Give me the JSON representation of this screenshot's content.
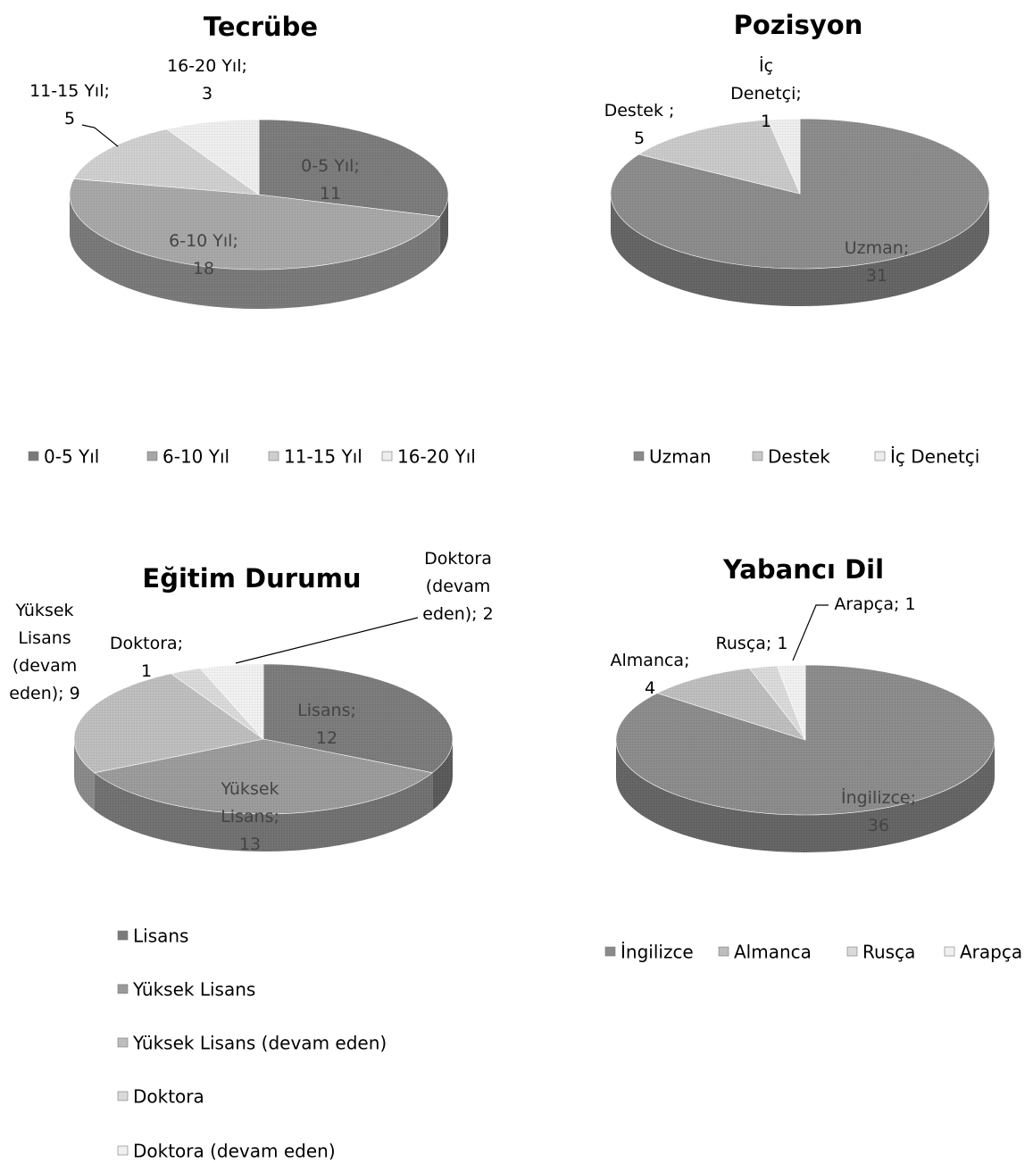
{
  "chart_data": [
    {
      "type": "pie",
      "title": "Tecrübe",
      "categories": [
        "0-5 Yıl",
        "6-10 Yıl",
        "11-15 Yıl",
        "16-20 Yıl"
      ],
      "values": [
        11,
        18,
        5,
        3
      ],
      "colors": [
        "#7a7a7a",
        "#a6a6a6",
        "#cecece",
        "#ededed"
      ],
      "data_labels": [
        {
          "category": "0-5 Yıl",
          "value": "11"
        },
        {
          "category": "6-10 Yıl",
          "value": "18"
        },
        {
          "category": "11-15 Yıl",
          "value": "5"
        },
        {
          "category": "16-20 Yıl",
          "value": "3"
        }
      ],
      "legend": [
        "0-5 Yıl",
        "6-10 Yıl",
        "11-15 Yıl",
        "16-20 Yıl"
      ],
      "legend_position": "bottom"
    },
    {
      "type": "pie",
      "title": "Pozisyon",
      "categories": [
        "Uzman",
        "Destek",
        "İç Denetçi"
      ],
      "values": [
        31,
        5,
        1
      ],
      "colors": [
        "#8a8a8a",
        "#c8c8c8",
        "#ededed"
      ],
      "data_labels": [
        {
          "category": "Uzman",
          "value": "31"
        },
        {
          "category": "Destek",
          "value": "5"
        },
        {
          "category": "İç Denetçi",
          "value": "1"
        }
      ],
      "legend": [
        "Uzman",
        "Destek",
        "İç Denetçi"
      ],
      "legend_position": "bottom"
    },
    {
      "type": "pie",
      "title": "Eğitim Durumu",
      "categories": [
        "Lisans",
        "Yüksek Lisans",
        "Yüksek Lisans (devam eden)",
        "Doktora",
        "Doktora (devam eden)"
      ],
      "values": [
        12,
        13,
        9,
        1,
        2
      ],
      "colors": [
        "#7a7a7a",
        "#9a9a9a",
        "#bdbdbd",
        "#d9d9d9",
        "#f0f0f0"
      ],
      "data_labels": [
        {
          "category": "Lisans",
          "value": "12"
        },
        {
          "category": "Yüksek Lisans",
          "value": "13"
        },
        {
          "category": "Yüksek Lisans (devam eden)",
          "value": "9"
        },
        {
          "category": "Doktora",
          "value": "1"
        },
        {
          "category": "Doktora (devam eden)",
          "value": "2"
        }
      ],
      "legend": [
        "Lisans",
        "Yüksek Lisans",
        "Yüksek Lisans (devam eden)",
        "Doktora",
        "Doktora (devam eden)"
      ],
      "legend_position": "bottom"
    },
    {
      "type": "pie",
      "title": "Yabancı Dil",
      "categories": [
        "İngilizce",
        "Almanca",
        "Rusça",
        "Arapça"
      ],
      "values": [
        36,
        4,
        1,
        1
      ],
      "colors": [
        "#8a8a8a",
        "#bdbdbd",
        "#d9d9d9",
        "#f0f0f0"
      ],
      "data_labels": [
        {
          "category": "İngilizce",
          "value": "36"
        },
        {
          "category": "Almanca",
          "value": "4"
        },
        {
          "category": "Rusça",
          "value": "1"
        },
        {
          "category": "Arapça",
          "value": "1"
        }
      ],
      "legend": [
        "İngilizce",
        "Almanca",
        "Rusça",
        "Arapça"
      ],
      "legend_position": "bottom"
    }
  ]
}
